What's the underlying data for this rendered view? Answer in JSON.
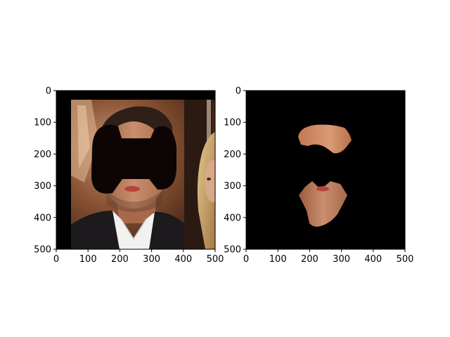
{
  "chart_data": [
    {
      "type": "image",
      "title": "",
      "xlabel": "",
      "ylabel": "",
      "xlim": [
        0,
        500
      ],
      "ylim": [
        500,
        0
      ],
      "xticks": [
        0,
        100,
        200,
        300,
        400,
        500
      ],
      "yticks": [
        0,
        100,
        200,
        300,
        400,
        500
      ],
      "grid": false,
      "content": "photo of a man with eyes and nose masked by a black bow-tie shaped region; a woman with blonde hair at right edge"
    },
    {
      "type": "image",
      "title": "",
      "xlabel": "",
      "ylabel": "",
      "xlim": [
        0,
        500
      ],
      "ylim": [
        500,
        0
      ],
      "xticks": [
        0,
        100,
        200,
        300,
        400,
        500
      ],
      "yticks": [
        0,
        100,
        200,
        300,
        400,
        500
      ],
      "grid": false,
      "content": "segmented face-skin region (forehead and lower face) on black background"
    }
  ],
  "colors": {
    "skin": "#c98e6e",
    "skin_shadow": "#a8694a",
    "hair": "#3a2a22",
    "mask": "#0d0503",
    "jacket": "#1c1a1c",
    "shirt": "#f1f1ef",
    "background_warm": "#7a4a2c",
    "blonde": "#d9b57a",
    "lips": "#b4453c"
  }
}
